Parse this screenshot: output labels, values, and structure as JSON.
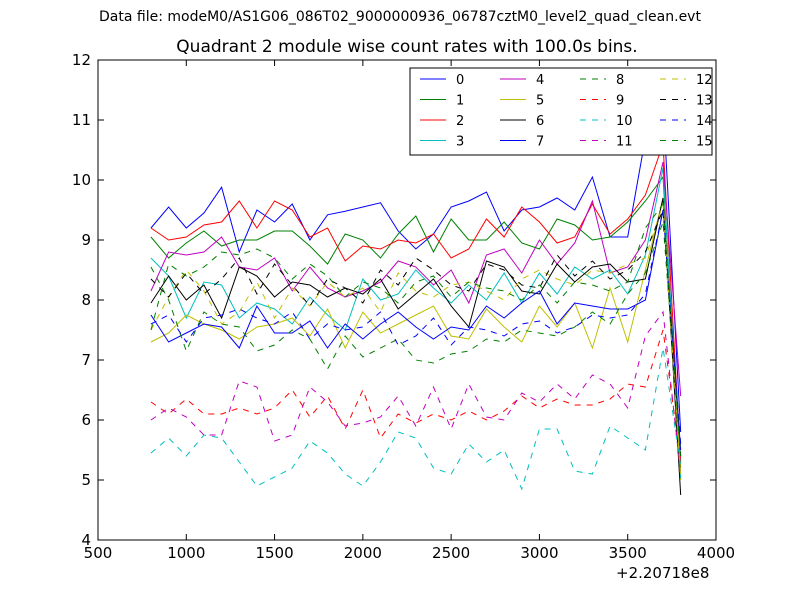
{
  "figure": {
    "suptitle": "Data file: modeM0/AS1G06_086T02_9000000936_06787cztM0_level2_quad_clean.evt"
  },
  "chart_data": {
    "type": "line",
    "title": "Quadrant 2 module wise count rates with 100.0s bins.",
    "xlabel": "",
    "ylabel": "",
    "x_offset_label": "+2.20718e8",
    "xlim": [
      500,
      4000
    ],
    "ylim": [
      4,
      12
    ],
    "xticks": [
      500,
      1000,
      1500,
      2000,
      2500,
      3000,
      3500,
      4000
    ],
    "yticks": [
      4,
      5,
      6,
      7,
      8,
      9,
      10,
      11,
      12
    ],
    "grid": false,
    "legend_position": "top-right",
    "legend_columns": 4,
    "x": [
      800,
      900,
      1000,
      1100,
      1200,
      1300,
      1400,
      1500,
      1600,
      1700,
      1800,
      1900,
      2000,
      2100,
      2200,
      2300,
      2400,
      2500,
      2600,
      2700,
      2800,
      2900,
      3000,
      3100,
      3200,
      3300,
      3400,
      3500,
      3600,
      3700,
      3800
    ],
    "series": [
      {
        "name": "0",
        "color": "#0000ff",
        "dash": "solid",
        "values": [
          9.2,
          9.55,
          9.2,
          9.45,
          9.88,
          8.8,
          9.5,
          9.3,
          9.6,
          9.0,
          9.42,
          9.48,
          9.55,
          9.62,
          9.15,
          8.85,
          9.1,
          9.55,
          9.65,
          9.8,
          9.15,
          9.5,
          9.55,
          9.7,
          9.5,
          10.05,
          9.05,
          9.05,
          10.7,
          11.3,
          5.8
        ]
      },
      {
        "name": "1",
        "color": "#008000",
        "dash": "solid",
        "values": [
          9.05,
          8.7,
          8.95,
          9.15,
          8.9,
          9.0,
          9.0,
          9.15,
          9.15,
          8.9,
          8.6,
          9.1,
          9.0,
          8.7,
          9.1,
          9.4,
          8.8,
          9.35,
          9.0,
          9.0,
          9.3,
          8.95,
          8.85,
          9.35,
          9.25,
          9.0,
          9.05,
          9.3,
          9.65,
          10.05,
          5.2
        ]
      },
      {
        "name": "2",
        "color": "#ff0000",
        "dash": "solid",
        "values": [
          9.2,
          9.0,
          9.05,
          9.25,
          9.3,
          9.65,
          9.2,
          9.65,
          9.5,
          9.05,
          9.2,
          8.65,
          8.9,
          8.85,
          9.0,
          8.95,
          9.1,
          8.7,
          8.85,
          9.35,
          9.05,
          9.55,
          9.3,
          8.95,
          9.05,
          9.6,
          9.1,
          9.35,
          9.75,
          10.6,
          5.3
        ]
      },
      {
        "name": "3",
        "color": "#00bfbf",
        "dash": "solid",
        "values": [
          8.7,
          8.4,
          7.7,
          8.3,
          8.25,
          7.7,
          7.95,
          7.85,
          7.6,
          8.05,
          7.75,
          7.5,
          8.35,
          8.0,
          8.1,
          8.5,
          8.2,
          7.95,
          8.25,
          8.0,
          8.45,
          7.95,
          8.45,
          8.1,
          8.55,
          8.35,
          8.5,
          8.1,
          8.75,
          10.2,
          5.0
        ]
      },
      {
        "name": "4",
        "color": "#bf00bf",
        "dash": "solid",
        "values": [
          8.15,
          8.8,
          8.75,
          8.8,
          9.05,
          8.55,
          8.5,
          8.7,
          8.15,
          8.55,
          8.2,
          8.05,
          8.15,
          8.3,
          8.65,
          8.55,
          8.25,
          8.5,
          7.95,
          8.75,
          8.85,
          8.45,
          9.0,
          8.6,
          8.95,
          9.65,
          8.45,
          8.55,
          9.0,
          10.3,
          6.4
        ]
      },
      {
        "name": "5",
        "color": "#bfbf00",
        "dash": "solid",
        "values": [
          7.3,
          7.45,
          7.75,
          7.6,
          7.5,
          7.35,
          7.55,
          7.6,
          7.7,
          7.4,
          7.85,
          7.2,
          7.8,
          7.45,
          7.6,
          7.75,
          7.9,
          7.4,
          7.35,
          7.85,
          7.55,
          7.3,
          7.9,
          7.55,
          7.95,
          7.2,
          8.2,
          7.3,
          8.5,
          9.7,
          5.1
        ]
      },
      {
        "name": "6",
        "color": "#000000",
        "dash": "solid",
        "values": [
          7.95,
          8.4,
          8.0,
          8.25,
          7.7,
          8.55,
          8.4,
          8.05,
          8.3,
          8.25,
          8.05,
          8.2,
          8.1,
          8.35,
          7.85,
          8.1,
          8.35,
          7.9,
          7.55,
          8.65,
          8.55,
          8.15,
          8.1,
          8.6,
          8.3,
          8.55,
          8.6,
          8.3,
          8.35,
          9.7,
          4.75
        ]
      },
      {
        "name": "7",
        "color": "#0000ff",
        "dash": "solid",
        "values": [
          7.75,
          7.3,
          7.45,
          7.6,
          7.55,
          7.2,
          7.9,
          7.45,
          7.45,
          7.65,
          7.2,
          7.6,
          7.35,
          7.6,
          7.8,
          7.55,
          7.35,
          7.55,
          7.5,
          7.9,
          7.7,
          7.95,
          8.15,
          7.6,
          7.95,
          7.9,
          7.85,
          7.85,
          8.0,
          9.5,
          5.5
        ]
      },
      {
        "name": "8",
        "color": "#008000",
        "dash": "dash",
        "values": [
          8.55,
          8.0,
          7.15,
          7.8,
          7.6,
          7.55,
          7.15,
          7.25,
          7.5,
          7.35,
          6.85,
          7.4,
          7.05,
          7.2,
          7.35,
          7.0,
          6.95,
          7.1,
          7.15,
          7.35,
          7.3,
          7.5,
          7.45,
          7.4,
          7.55,
          7.8,
          7.6,
          8.1,
          8.45,
          9.3,
          5.4
        ]
      },
      {
        "name": "9",
        "color": "#ff0000",
        "dash": "dash",
        "values": [
          6.3,
          6.1,
          6.35,
          6.1,
          6.1,
          6.2,
          6.1,
          6.2,
          6.5,
          6.05,
          6.4,
          5.85,
          6.5,
          5.7,
          6.1,
          5.95,
          6.1,
          6.0,
          6.15,
          6.0,
          6.15,
          6.4,
          6.2,
          6.35,
          6.25,
          6.25,
          6.35,
          6.6,
          6.55,
          7.5,
          5.3
        ]
      },
      {
        "name": "10",
        "color": "#00bfbf",
        "dash": "dash",
        "values": [
          5.45,
          5.7,
          5.4,
          5.75,
          5.7,
          5.3,
          4.9,
          5.05,
          5.2,
          5.65,
          5.45,
          5.1,
          4.9,
          5.3,
          5.8,
          5.7,
          5.2,
          5.1,
          5.6,
          5.3,
          5.5,
          4.85,
          5.85,
          5.85,
          5.15,
          5.1,
          5.9,
          5.7,
          5.5,
          7.2,
          5.25
        ]
      },
      {
        "name": "11",
        "color": "#bf00bf",
        "dash": "dash",
        "values": [
          6.0,
          6.2,
          6.05,
          5.75,
          5.75,
          6.65,
          6.55,
          5.65,
          5.75,
          6.55,
          6.3,
          5.9,
          5.95,
          6.05,
          6.4,
          5.9,
          6.55,
          5.85,
          6.6,
          6.05,
          6.0,
          6.45,
          6.3,
          6.6,
          6.35,
          6.75,
          6.6,
          6.2,
          7.4,
          7.8,
          5.1
        ]
      },
      {
        "name": "12",
        "color": "#bfbf00",
        "dash": "dash",
        "values": [
          7.5,
          8.05,
          8.5,
          8.15,
          7.6,
          7.8,
          8.3,
          7.7,
          8.2,
          7.9,
          8.3,
          8.05,
          8.2,
          7.8,
          8.45,
          8.15,
          8.05,
          8.25,
          8.3,
          8.15,
          8.0,
          8.35,
          8.5,
          8.35,
          8.25,
          8.5,
          8.45,
          8.6,
          8.7,
          9.6,
          5.0
        ]
      },
      {
        "name": "13",
        "color": "#000000",
        "dash": "dash",
        "values": [
          8.35,
          8.05,
          8.45,
          8.1,
          8.35,
          8.7,
          8.1,
          8.6,
          8.25,
          7.9,
          8.35,
          8.2,
          7.95,
          8.5,
          8.25,
          8.7,
          8.5,
          8.25,
          8.15,
          8.6,
          8.5,
          8.25,
          8.2,
          8.75,
          8.4,
          8.65,
          8.35,
          8.5,
          8.8,
          9.5,
          5.4
        ]
      },
      {
        "name": "14",
        "color": "#0000ff",
        "dash": "dash",
        "values": [
          7.6,
          7.75,
          7.3,
          7.7,
          7.75,
          7.85,
          7.7,
          7.6,
          7.8,
          7.35,
          7.6,
          7.5,
          7.55,
          7.8,
          7.25,
          7.4,
          7.7,
          7.25,
          7.55,
          7.5,
          7.4,
          7.6,
          7.65,
          7.45,
          7.55,
          7.75,
          7.7,
          7.75,
          8.1,
          9.5,
          5.6
        ]
      },
      {
        "name": "15",
        "color": "#008000",
        "dash": "dash",
        "values": [
          7.5,
          8.6,
          8.4,
          8.55,
          8.8,
          8.75,
          8.85,
          8.7,
          8.35,
          8.6,
          8.4,
          8.05,
          8.3,
          8.2,
          7.95,
          8.3,
          8.4,
          8.05,
          8.3,
          8.2,
          8.15,
          8.0,
          8.25,
          7.95,
          8.3,
          8.25,
          8.15,
          8.3,
          9.2,
          9.6,
          5.35
        ]
      }
    ]
  }
}
